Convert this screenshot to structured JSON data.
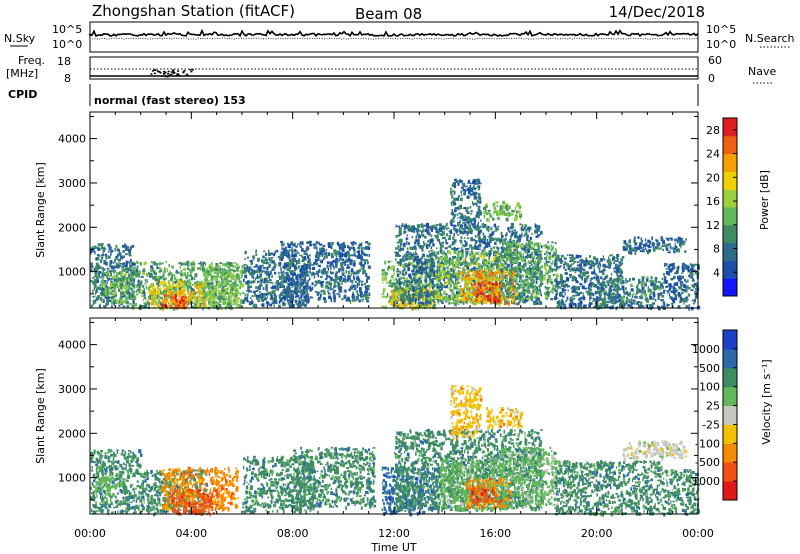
{
  "header": {
    "station": "Zhongshan Station (fitACF)",
    "beam": "Beam 08",
    "date": "14/Dec/2018"
  },
  "top_panels": {
    "nsky_label": "N.Sky",
    "nsky_ticks": [
      "10^5",
      "10^0"
    ],
    "nsearch_label": "N.Search",
    "nsearch_ticks": [
      "10^5",
      "10^0"
    ],
    "freq_label_1": "Freq.",
    "freq_label_2": "[MHz]",
    "freq_ticks": [
      "18",
      "8"
    ],
    "nave_label": "Nave",
    "nave_ticks": [
      "60",
      "0"
    ],
    "cpid_label": "CPID",
    "cpid_text": "normal (fast stereo) 153"
  },
  "chart_data": [
    {
      "type": "heatmap",
      "name": "power",
      "ylabel": "Slant Range [km]",
      "xlabel": "Time UT",
      "yticks": [
        "1000",
        "2000",
        "3000",
        "4000"
      ],
      "ylim": [
        180,
        4600
      ],
      "xlim_hours": [
        0,
        24
      ],
      "colorbar": {
        "label": "Power [dB]",
        "ticks": [
          "4",
          "8",
          "12",
          "16",
          "20",
          "24",
          "28"
        ],
        "range": [
          0,
          30
        ],
        "colors": [
          "#1414ff",
          "#1b4fa8",
          "#2e6a8e",
          "#3f8c63",
          "#62b85a",
          "#9ad13c",
          "#f0d000",
          "#f5a000",
          "#f06010",
          "#e02020"
        ]
      },
      "regions": [
        {
          "t": [
            0.0,
            1.7
          ],
          "r": [
            230,
            1650
          ],
          "v": 8
        },
        {
          "t": [
            0.4,
            1.5
          ],
          "r": [
            300,
            1050
          ],
          "v": 14
        },
        {
          "t": [
            1.5,
            5.8
          ],
          "r": [
            200,
            1250
          ],
          "v": 12
        },
        {
          "t": [
            2.3,
            4.6
          ],
          "r": [
            200,
            800
          ],
          "v": 20
        },
        {
          "t": [
            2.8,
            3.8
          ],
          "r": [
            200,
            550
          ],
          "v": 26
        },
        {
          "t": [
            4.4,
            6.0
          ],
          "r": [
            200,
            1200
          ],
          "v": 14
        },
        {
          "t": [
            6.0,
            8.6
          ],
          "r": [
            250,
            1500
          ],
          "v": 8
        },
        {
          "t": [
            7.5,
            11.0
          ],
          "r": [
            350,
            1700
          ],
          "v": 7
        },
        {
          "t": [
            11.5,
            13.6
          ],
          "r": [
            200,
            1250
          ],
          "v": 14
        },
        {
          "t": [
            11.8,
            13.6
          ],
          "r": [
            200,
            650
          ],
          "v": 20
        },
        {
          "t": [
            12.0,
            17.8
          ],
          "r": [
            300,
            2100
          ],
          "v": 8
        },
        {
          "t": [
            13.6,
            16.2
          ],
          "r": [
            300,
            1500
          ],
          "v": 15
        },
        {
          "t": [
            14.6,
            16.8
          ],
          "r": [
            300,
            1050
          ],
          "v": 22
        },
        {
          "t": [
            15.2,
            16.2
          ],
          "r": [
            350,
            800
          ],
          "v": 27
        },
        {
          "t": [
            14.2,
            15.4
          ],
          "r": [
            1900,
            3100
          ],
          "v": 8
        },
        {
          "t": [
            15.5,
            17.0
          ],
          "r": [
            2200,
            2600
          ],
          "v": 14
        },
        {
          "t": [
            16.2,
            18.4
          ],
          "r": [
            400,
            1700
          ],
          "v": 12
        },
        {
          "t": [
            18.3,
            21.0
          ],
          "r": [
            200,
            1400
          ],
          "v": 8
        },
        {
          "t": [
            19.8,
            22.6
          ],
          "r": [
            200,
            900
          ],
          "v": 9
        },
        {
          "t": [
            21.0,
            23.5
          ],
          "r": [
            1450,
            1800
          ],
          "v": 7
        },
        {
          "t": [
            22.6,
            24.0
          ],
          "r": [
            200,
            1200
          ],
          "v": 7
        }
      ]
    },
    {
      "type": "heatmap",
      "name": "velocity",
      "ylabel": "Slant Range [km]",
      "xlabel": "Time UT",
      "yticks": [
        "1000",
        "2000",
        "3000",
        "4000"
      ],
      "ylim": [
        180,
        4600
      ],
      "xlim_hours": [
        0,
        24
      ],
      "xticks": [
        "00:00",
        "04:00",
        "08:00",
        "12:00",
        "16:00",
        "20:00",
        "00:00"
      ],
      "colorbar": {
        "label": "Velocity [m s⁻¹]",
        "ticks": [
          "1000",
          "500",
          "100",
          "25",
          "-25",
          "-100",
          "-500",
          "-1000"
        ],
        "colors": [
          "#1b3fc8",
          "#2a6aa8",
          "#3f8c63",
          "#62b85a",
          "#c8c8c0",
          "#f5c000",
          "#f58a00",
          "#f05010",
          "#e01818"
        ]
      },
      "regions": [
        {
          "t": [
            0.0,
            2.0
          ],
          "r": [
            230,
            1650
          ],
          "v": 2
        },
        {
          "t": [
            0.2,
            1.0
          ],
          "r": [
            600,
            1100
          ],
          "v": 3
        },
        {
          "t": [
            2.0,
            4.6
          ],
          "r": [
            200,
            1200
          ],
          "v": 2
        },
        {
          "t": [
            2.8,
            5.8
          ],
          "r": [
            300,
            1250
          ],
          "v": 6
        },
        {
          "t": [
            3.2,
            5.0
          ],
          "r": [
            200,
            750
          ],
          "v": 7
        },
        {
          "t": [
            6.0,
            8.8
          ],
          "r": [
            250,
            1500
          ],
          "v": 2
        },
        {
          "t": [
            8.0,
            11.2
          ],
          "r": [
            350,
            1700
          ],
          "v": 2
        },
        {
          "t": [
            11.5,
            13.8
          ],
          "r": [
            200,
            1250
          ],
          "v": 1
        },
        {
          "t": [
            12.0,
            17.8
          ],
          "r": [
            300,
            2100
          ],
          "v": 2
        },
        {
          "t": [
            13.8,
            16.4
          ],
          "r": [
            300,
            1450
          ],
          "v": 3
        },
        {
          "t": [
            14.8,
            16.6
          ],
          "r": [
            350,
            1000
          ],
          "v": 6
        },
        {
          "t": [
            15.0,
            16.0
          ],
          "r": [
            450,
            800
          ],
          "v": 7
        },
        {
          "t": [
            14.2,
            15.4
          ],
          "r": [
            1900,
            3100
          ],
          "v": 5
        },
        {
          "t": [
            15.6,
            17.0
          ],
          "r": [
            2150,
            2600
          ],
          "v": 5
        },
        {
          "t": [
            16.2,
            18.4
          ],
          "r": [
            400,
            1700
          ],
          "v": 3
        },
        {
          "t": [
            18.3,
            22.6
          ],
          "r": [
            200,
            1400
          ],
          "v": 2
        },
        {
          "t": [
            21.0,
            23.5
          ],
          "r": [
            1450,
            1850
          ],
          "v": 4
        },
        {
          "t": [
            22.6,
            24.0
          ],
          "r": [
            200,
            1200
          ],
          "v": 2
        }
      ]
    }
  ]
}
